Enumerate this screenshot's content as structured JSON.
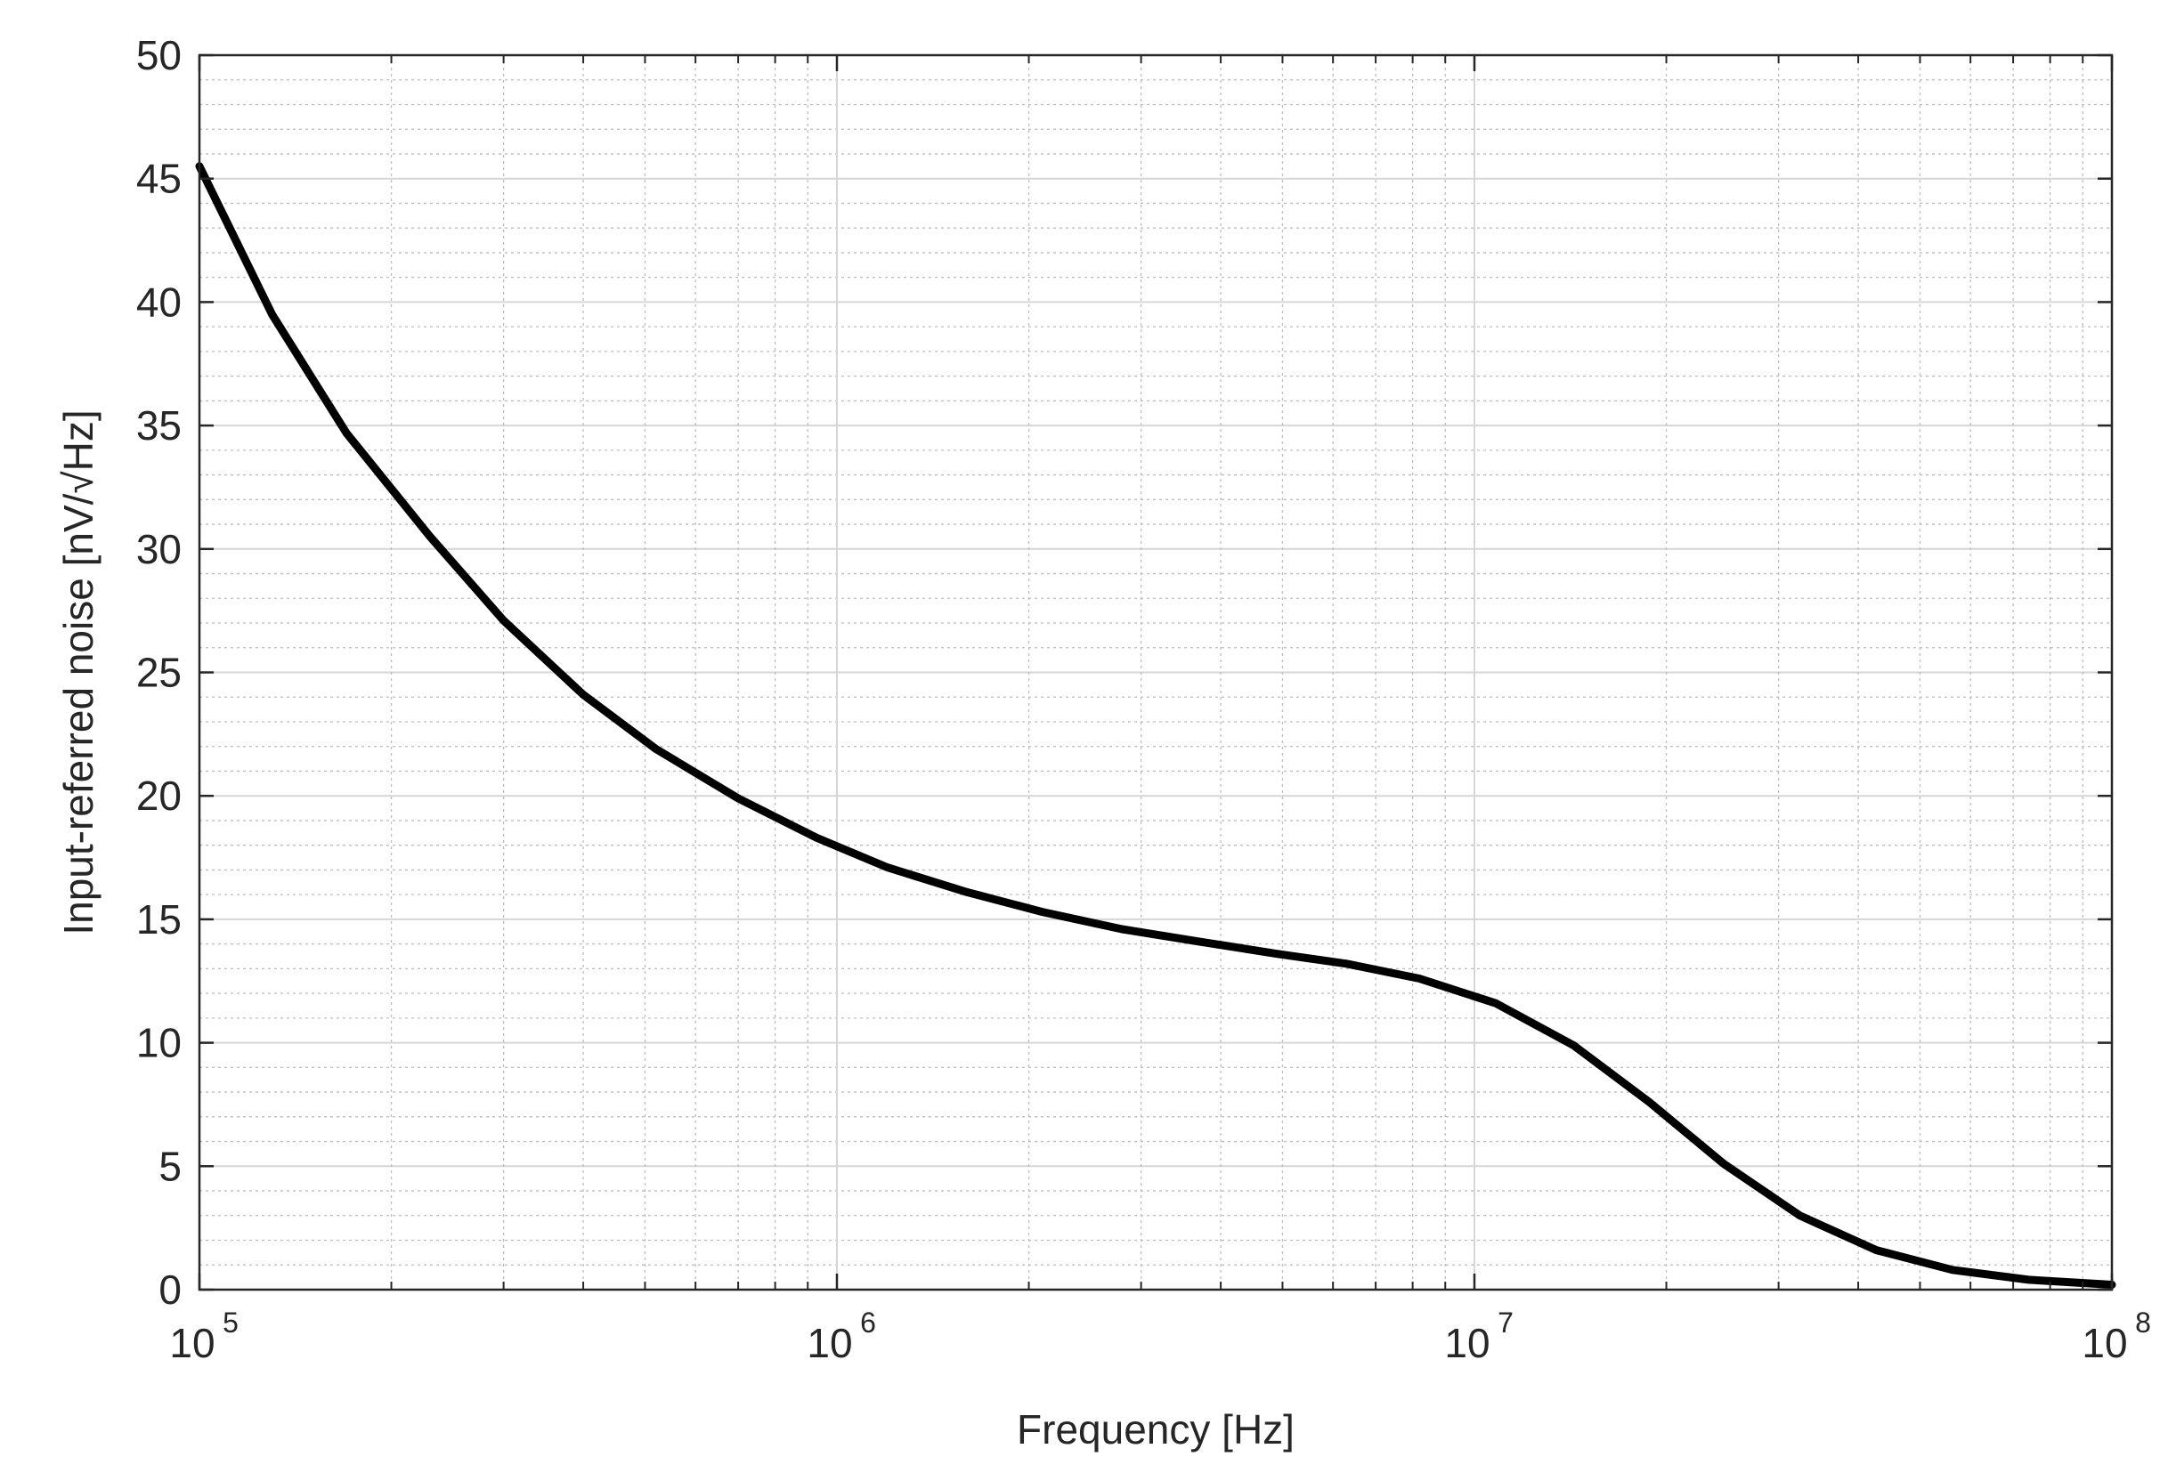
{
  "chart_data": {
    "type": "line",
    "title": "",
    "xlabel": "Frequency [Hz]",
    "ylabel": "Input-referred noise [nV/√Hz]",
    "xscale": "log",
    "xlim": [
      100000,
      100000000
    ],
    "ylim": [
      0,
      50
    ],
    "grid": true,
    "minor_grid": true,
    "x_ticks": [
      {
        "base": "10",
        "exp": "5",
        "value": 100000
      },
      {
        "base": "10",
        "exp": "6",
        "value": 1000000
      },
      {
        "base": "10",
        "exp": "7",
        "value": 10000000
      },
      {
        "base": "10",
        "exp": "8",
        "value": 100000000
      }
    ],
    "y_ticks": [
      "0",
      "5",
      "10",
      "15",
      "20",
      "25",
      "30",
      "35",
      "40",
      "45",
      "50"
    ],
    "line_color": "#000000",
    "series": [
      {
        "x": [
          100000,
          130000,
          170000,
          230000,
          300000,
          400000,
          520000,
          700000,
          930000,
          1200000,
          1600000,
          2100000,
          2800000,
          3700000,
          4900000,
          6300000,
          8200000,
          10800000,
          14300000,
          18800000,
          24600000,
          32400000,
          42700000,
          56200000,
          74000000,
          100000000
        ],
        "y": [
          45.5,
          39.5,
          34.7,
          30.5,
          27.1,
          24.1,
          21.9,
          19.9,
          18.3,
          17.1,
          16.1,
          15.3,
          14.6,
          14.1,
          13.6,
          13.2,
          12.6,
          11.6,
          9.9,
          7.6,
          5.1,
          3.0,
          1.6,
          0.8,
          0.4,
          0.2
        ]
      }
    ]
  }
}
